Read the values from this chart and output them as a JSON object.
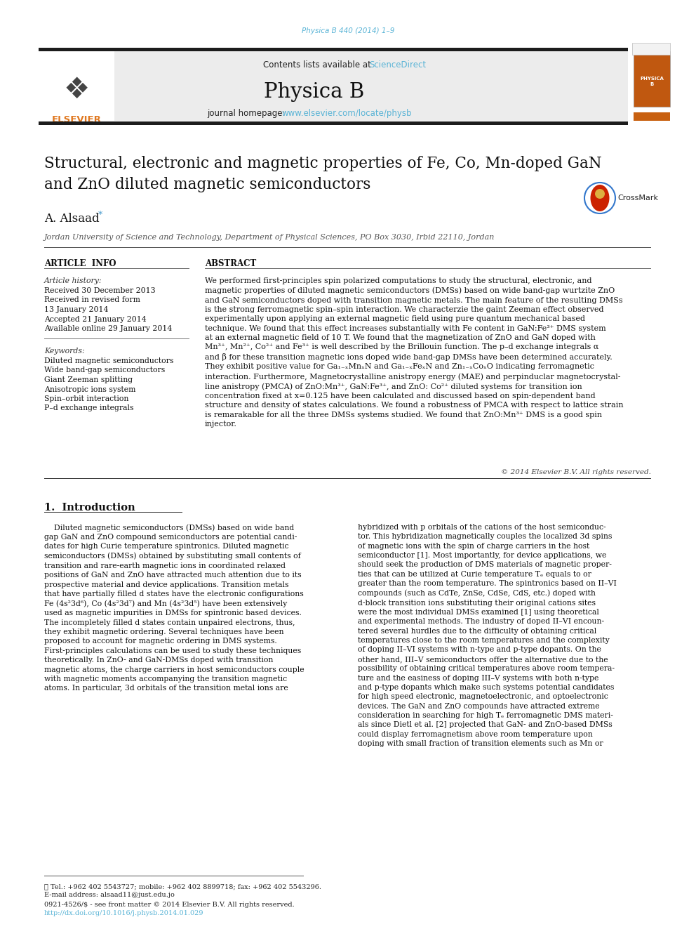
{
  "page_color": "#ffffff",
  "top_journal_ref": "Physica B 440 (2014) 1–9",
  "top_journal_ref_color": "#5ab4d6",
  "header_bg": "#ebebeb",
  "journal_name": "Physica B",
  "contents_text": "Contents lists available at ",
  "sciencedirect_text": "ScienceDirect",
  "sciencedirect_color": "#5ab4d6",
  "homepage_text": "journal homepage: ",
  "homepage_url": "www.elsevier.com/locate/physb",
  "homepage_url_color": "#5ab4d6",
  "title_line1": "Structural, electronic and magnetic properties of Fe, Co, Mn-doped GaN",
  "title_line2": "and ZnO diluted magnetic semiconductors",
  "author": "A. Alsaad",
  "affiliation": "Jordan University of Science and Technology, Department of Physical Sciences, PO Box 3030, Irbid 22110, Jordan",
  "article_info_title": "ARTICLE  INFO",
  "abstract_title": "ABSTRACT",
  "article_history_label": "Article history:",
  "dates": [
    "Received 30 December 2013",
    "Received in revised form",
    "13 January 2014",
    "Accepted 21 January 2014",
    "Available online 29 January 2014"
  ],
  "keywords_label": "Keywords:",
  "keywords": [
    "Diluted magnetic semiconductors",
    "Wide band-gap semiconductors",
    "Giant Zeeman splitting",
    "Anisotropic ions system",
    "Spin–orbit interaction",
    "P–d exchange integrals"
  ],
  "abstract_text": "We performed first-principles spin polarized computations to study the structural, electronic, and\nmagnetic properties of diluted magnetic semiconductors (DMSs) based on wide band-gap wurtzite ZnO\nand GaN semiconductors doped with transition magnetic metals. The main feature of the resulting DMSs\nis the strong ferromagnetic spin–spin interaction. We characterzie the gaint Zeeman effect observed\nexperimentally upon applying an external magnetic field using pure quantum mechanical based\ntechnique. We found that this effect increases substantially with Fe content in GaN:Fe³⁺ DMS system\nat an external magnetic field of 10 T. We found that the magnetization of ZnO and GaN doped with\nMn³⁺, Mn²⁺, Co²⁺ and Fe³⁺ is well described by the Brillouin function. The p–d exchange integrals α\nand β for these transition magnetic ions doped wide band-gap DMSs have been determined accurately.\nThey exhibit positive value for Ga₁₋ₓMnₓN and Ga₁₋ₓFeₓN and Zn₁₋ₓCoₓO indicating ferromagnetic\ninteraction. Furthermore, Magnetocrystalline anistropy energy (MAE) and perpinduclar magnetocrystal-\nline anistropy (PMCA) of ZnO:Mn³⁺, GaN:Fe³⁺, and ZnO: Co²⁺ diluted systems for transition ion\nconcentration fixed at x=0.125 have been calculated and discussed based on spin-dependent band\nstructure and density of states calculations. We found a robustness of PMCA with respect to lattice strain\nis remarakable for all the three DMSs systems studied. We found that ZnO:Mn³⁺ DMS is a good spin\ninjector.",
  "copyright_text": "© 2014 Elsevier B.V. All rights reserved.",
  "section1_title": "1.  Introduction",
  "intro_col1": "    Diluted magnetic semiconductors (DMSs) based on wide band\ngap GaN and ZnO compound semiconductors are potential candi-\ndates for high Curie temperature spintronics. Diluted magnetic\nsemiconductors (DMSs) obtained by substituting small contents of\ntransition and rare-earth magnetic ions in coordinated relaxed\npositions of GaN and ZnO have attracted much attention due to its\nprospective material and device applications. Transition metals\nthat have partially filled d states have the electronic configurations\nFe (4s²3d⁶), Co (4s²3d⁷) and Mn (4s²3d⁵) have been extensively\nused as magnetic impurities in DMSs for spintronic based devices.\nThe incompletely filled d states contain unpaired electrons, thus,\nthey exhibit magnetic ordering. Several techniques have been\nproposed to account for magnetic ordering in DMS systems.\nFirst-principles calculations can be used to study these techniques\ntheoretically. In ZnO- and GaN-DMSs doped with transition\nmagnetic atoms, the charge carriers in host semiconductors couple\nwith magnetic moments accompanying the transition magnetic\natoms. In particular, 3d orbitals of the transition metal ions are",
  "intro_col2": "hybridized with p orbitals of the cations of the host semiconduc-\ntor. This hybridization magnetically couples the localized 3d spins\nof magnetic ions with the spin of charge carriers in the host\nsemiconductor [1]. Most importantly, for device applications, we\nshould seek the production of DMS materials of magnetic proper-\nties that can be utilized at Curie temperature Tₑ equals to or\ngreater than the room temperature. The spintronics based on II–VI\ncompounds (such as CdTe, ZnSe, CdSe, CdS, etc.) doped with\nd-block transition ions substituting their original cations sites\nwere the most individual DMSs examined [1] using theoretical\nand experimental methods. The industry of doped II–VI encoun-\ntered several hurdles due to the difficulty of obtaining critical\ntemperatures close to the room temperatures and the complexity\nof doping II–VI systems with n-type and p-type dopants. On the\nother hand, III–V semiconductors offer the alternative due to the\npossibility of obtaining critical temperatures above room tempera-\nture and the easiness of doping III–V systems with both n-type\nand p-type dopants which make such systems potential candidates\nfor high speed electronic, magnetoelectronic, and optoelectronic\ndevices. The GaN and ZnO compounds have attracted extreme\nconsideration in searching for high Tₑ ferromagnetic DMS materi-\nals since Dietl et al. [2] projected that GaN- and ZnO-based DMSs\ncould display ferromagnetism above room temperature upon\ndoping with small fraction of transition elements such as Mn or",
  "footer_text1": "★ Tel.: +962 402 5543727; mobile: +962 402 8899718; fax: +962 402 5543296.",
  "footer_text2": "E-mail address: alsaad11@just.edu.jo",
  "footer_text3": "0921-4526/$ - see front matter © 2014 Elsevier B.V. All rights reserved.",
  "footer_url": "http://dx.doi.org/10.1016/j.physb.2014.01.029",
  "footer_url_color": "#5ab4d6"
}
